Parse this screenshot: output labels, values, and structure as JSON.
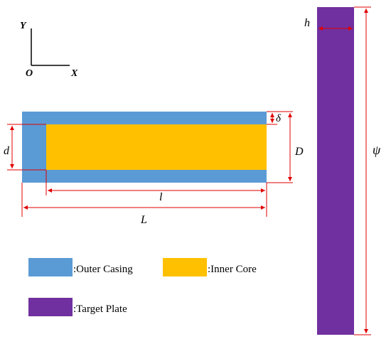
{
  "axes": {
    "y_label": "Y",
    "x_label": "X",
    "origin_label": "O"
  },
  "dimensions": {
    "delta": "δ",
    "D": "D",
    "d": "d",
    "l": "l",
    "L": "L",
    "h": "h",
    "psi": "ψ"
  },
  "legend": {
    "outer_casing": ":Outer Casing",
    "inner_core": ":Inner Core",
    "target_plate": ":Target Plate"
  },
  "colors": {
    "outer_casing": "#5b9bd5",
    "inner_core": "#ffc000",
    "target_plate": "#7030a0",
    "dimension_line": "#e00000"
  }
}
